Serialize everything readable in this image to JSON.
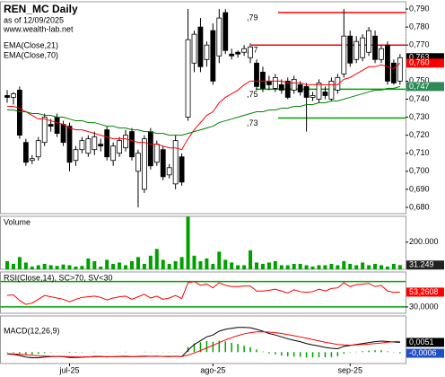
{
  "chart_data": [
    {
      "type": "candlestick",
      "title": "REN_MC Daily",
      "subtitle": "as of 12/09/2025",
      "source": "www.wealth-lab.net",
      "categories": [
        null,
        null,
        null,
        null,
        null,
        null,
        null,
        null,
        null,
        null,
        "jul-25",
        null,
        null,
        null,
        null,
        null,
        null,
        null,
        null,
        null,
        null,
        null,
        null,
        null,
        null,
        null,
        null,
        null,
        null,
        null,
        null,
        null,
        null,
        "ago-25",
        null,
        null,
        null,
        null,
        null,
        null,
        null,
        null,
        null,
        null,
        null,
        null,
        null,
        null,
        null,
        null,
        null,
        null,
        null,
        null,
        null,
        "sep-25",
        null,
        null,
        null,
        null,
        null,
        null,
        null,
        null
      ],
      "open": [
        0.742,
        0.741,
        0.745,
        0.716,
        0.706,
        0.708,
        0.716,
        0.726,
        0.73,
        0.726,
        0.725,
        0.706,
        0.712,
        0.71,
        0.712,
        0.715,
        0.723,
        0.706,
        0.71,
        0.713,
        0.722,
        0.7,
        0.69,
        0.722,
        0.705,
        0.712,
        0.698,
        0.693,
        0.708,
        0.73,
        0.76,
        0.78,
        0.762,
        0.778,
        0.764,
        0.788,
        0.765,
        0.766,
        0.766,
        0.763,
        0.76,
        0.755,
        0.75,
        0.746,
        0.748,
        0.75,
        0.745,
        0.748,
        0.747,
        0.741,
        0.74,
        0.744,
        0.74,
        0.745,
        0.754,
        0.775,
        0.762,
        0.763,
        0.766,
        0.775,
        0.762,
        0.77,
        0.76,
        0.75
      ],
      "high": [
        0.745,
        0.744,
        0.747,
        0.718,
        0.709,
        0.719,
        0.732,
        0.729,
        0.732,
        0.728,
        0.727,
        0.714,
        0.719,
        0.72,
        0.722,
        0.718,
        0.725,
        0.716,
        0.719,
        0.723,
        0.724,
        0.712,
        0.72,
        0.724,
        0.717,
        0.714,
        0.704,
        0.72,
        0.71,
        0.79,
        0.778,
        0.785,
        0.772,
        0.782,
        0.79,
        0.79,
        0.768,
        0.767,
        0.77,
        0.771,
        0.762,
        0.758,
        0.753,
        0.754,
        0.751,
        0.752,
        0.753,
        0.75,
        0.749,
        0.744,
        0.751,
        0.747,
        0.752,
        0.754,
        0.79,
        0.778,
        0.775,
        0.776,
        0.78,
        0.778,
        0.77,
        0.772,
        0.762,
        0.765
      ],
      "low": [
        0.738,
        0.737,
        0.718,
        0.703,
        0.704,
        0.706,
        0.714,
        0.722,
        0.719,
        0.714,
        0.7,
        0.703,
        0.71,
        0.708,
        0.709,
        0.711,
        0.706,
        0.703,
        0.708,
        0.711,
        0.706,
        0.68,
        0.688,
        0.701,
        0.703,
        0.695,
        0.696,
        0.69,
        0.692,
        0.728,
        0.755,
        0.755,
        0.758,
        0.748,
        0.76,
        0.765,
        0.762,
        0.763,
        0.764,
        0.76,
        0.745,
        0.744,
        0.745,
        0.744,
        0.743,
        0.74,
        0.743,
        0.742,
        0.722,
        0.739,
        0.738,
        0.74,
        0.739,
        0.743,
        0.752,
        0.758,
        0.76,
        0.761,
        0.764,
        0.76,
        0.76,
        0.748,
        0.748,
        0.748
      ],
      "close": [
        0.741,
        0.743,
        0.72,
        0.705,
        0.707,
        0.717,
        0.73,
        0.725,
        0.721,
        0.716,
        0.705,
        0.712,
        0.717,
        0.718,
        0.719,
        0.714,
        0.708,
        0.714,
        0.717,
        0.72,
        0.708,
        0.71,
        0.718,
        0.703,
        0.715,
        0.697,
        0.702,
        0.717,
        0.694,
        0.773,
        0.776,
        0.758,
        0.77,
        0.75,
        0.785,
        0.767,
        0.764,
        0.765,
        0.768,
        0.769,
        0.747,
        0.746,
        0.748,
        0.752,
        0.745,
        0.741,
        0.751,
        0.744,
        0.741,
        0.742,
        0.749,
        0.742,
        0.75,
        0.752,
        0.775,
        0.76,
        0.772,
        0.774,
        0.778,
        0.762,
        0.768,
        0.75,
        0.749,
        0.763
      ],
      "series": [
        {
          "name": "EMA(Close,21)",
          "color": "#ff0000",
          "values": [
            0.736,
            0.736,
            0.735,
            0.733,
            0.731,
            0.729,
            0.729,
            0.728,
            0.727,
            0.726,
            0.724,
            0.723,
            0.723,
            0.722,
            0.721,
            0.72,
            0.719,
            0.718,
            0.718,
            0.718,
            0.717,
            0.716,
            0.716,
            0.715,
            0.715,
            0.714,
            0.713,
            0.713,
            0.712,
            0.718,
            0.723,
            0.727,
            0.731,
            0.733,
            0.738,
            0.741,
            0.743,
            0.745,
            0.748,
            0.75,
            0.75,
            0.75,
            0.75,
            0.75,
            0.75,
            0.749,
            0.749,
            0.749,
            0.748,
            0.748,
            0.748,
            0.748,
            0.748,
            0.748,
            0.751,
            0.752,
            0.754,
            0.756,
            0.758,
            0.758,
            0.759,
            0.758,
            0.757,
            0.76
          ]
        },
        {
          "name": "EMA(Close,70)",
          "color": "#008000",
          "values": [
            0.734,
            0.734,
            0.733,
            0.733,
            0.732,
            0.732,
            0.731,
            0.731,
            0.73,
            0.73,
            0.729,
            0.728,
            0.728,
            0.727,
            0.727,
            0.726,
            0.725,
            0.725,
            0.724,
            0.724,
            0.723,
            0.723,
            0.722,
            0.722,
            0.721,
            0.721,
            0.72,
            0.72,
            0.72,
            0.721,
            0.722,
            0.723,
            0.724,
            0.725,
            0.727,
            0.728,
            0.729,
            0.73,
            0.731,
            0.732,
            0.733,
            0.733,
            0.734,
            0.734,
            0.735,
            0.735,
            0.736,
            0.736,
            0.737,
            0.737,
            0.738,
            0.738,
            0.739,
            0.739,
            0.74,
            0.741,
            0.742,
            0.743,
            0.744,
            0.745,
            0.745,
            0.746,
            0.746,
            0.747
          ]
        }
      ],
      "ylim": [
        0.6765,
        0.794
      ],
      "yticks": [
        {
          "value": 0.79,
          "label": "0,790"
        },
        {
          "value": 0.78,
          "label": "0,780"
        },
        {
          "value": 0.77,
          "label": "0,770"
        },
        {
          "value": 0.75,
          "label": "0,750"
        },
        {
          "value": 0.74,
          "label": "0,740"
        },
        {
          "value": 0.73,
          "label": "0,730"
        },
        {
          "value": 0.72,
          "label": "0,720"
        },
        {
          "value": 0.71,
          "label": "0,710"
        },
        {
          "value": 0.7,
          "label": "0,700"
        },
        {
          "value": 0.69,
          "label": "0,690"
        },
        {
          "value": 0.68,
          "label": "0,680"
        }
      ],
      "levels": [
        {
          "label": ",79",
          "value": 0.788,
          "color": "#ff0000"
        },
        {
          "label": ",77",
          "value": 0.77,
          "color": "#ff0000"
        },
        {
          "label": ",75",
          "value": 0.7455,
          "color": "#00a000"
        },
        {
          "label": ",73",
          "value": 0.7295,
          "color": "#00a000"
        }
      ],
      "last_labels": [
        {
          "value": 0.763,
          "label": "0,763",
          "color": "#000000"
        },
        {
          "value": 0.76,
          "label": "0,760",
          "color": "#ff0000"
        },
        {
          "value": 0.747,
          "label": "0,747",
          "color": "#2e8b57"
        }
      ]
    },
    {
      "type": "bar",
      "title": "Volume",
      "color": "#00a000",
      "values": [
        60000,
        40000,
        90000,
        50000,
        20000,
        30000,
        40000,
        30000,
        25000,
        35000,
        30000,
        20000,
        25000,
        80000,
        60000,
        20000,
        70000,
        40000,
        50000,
        30000,
        60000,
        90000,
        40000,
        100000,
        150000,
        70000,
        40000,
        60000,
        90000,
        387000,
        100000,
        60000,
        80000,
        40000,
        130000,
        70000,
        50000,
        30000,
        30000,
        140000,
        50000,
        40000,
        50000,
        60000,
        30000,
        30000,
        40000,
        40000,
        30000,
        20000,
        30000,
        30000,
        40000,
        30000,
        60000,
        40000,
        30000,
        50000,
        30000,
        40000,
        30000,
        20000,
        40000,
        31249
      ],
      "ylim": [
        0,
        390000
      ],
      "yticks": [
        {
          "value": 200000,
          "label": "200.000"
        }
      ],
      "last_labels": [
        {
          "value": 31249,
          "label": "31.249",
          "color": "#222222"
        }
      ]
    },
    {
      "type": "line",
      "title": "RSI(Close,14), SC>70, SV<30",
      "series": [
        {
          "color": "#ff0000",
          "values": [
            48,
            49,
            40,
            34,
            36,
            42,
            48,
            46,
            44,
            42,
            38,
            42,
            45,
            46,
            47,
            45,
            41,
            44,
            46,
            47,
            42,
            46,
            50,
            44,
            47,
            42,
            44,
            48,
            43,
            68,
            70,
            64,
            66,
            60,
            68,
            64,
            62,
            62,
            63,
            63,
            55,
            55,
            56,
            58,
            55,
            52,
            57,
            54,
            53,
            54,
            58,
            55,
            59,
            60,
            68,
            62,
            65,
            66,
            67,
            62,
            64,
            55,
            53,
            53.2608
          ]
        }
      ],
      "ylim": [
        20,
        85
      ],
      "yticks": [
        {
          "value": 30,
          "label": "30,0000"
        }
      ],
      "levels": [
        {
          "value": 70,
          "color": "#00a000"
        },
        {
          "value": 30,
          "color": "#00a000"
        }
      ],
      "last_labels": [
        {
          "value": 53.2608,
          "label": "53,2608",
          "color": "#ff0000"
        }
      ]
    },
    {
      "type": "macd",
      "title": "MACD(12,26,9)",
      "series": [
        {
          "color": "#000000",
          "values": [
            -0.001,
            -0.0012,
            -0.0018,
            -0.0026,
            -0.003,
            -0.003,
            -0.0026,
            -0.0024,
            -0.0023,
            -0.0024,
            -0.0028,
            -0.0028,
            -0.0027,
            -0.0025,
            -0.0023,
            -0.0023,
            -0.0025,
            -0.0024,
            -0.0023,
            -0.0022,
            -0.0024,
            -0.0023,
            -0.0021,
            -0.0022,
            -0.0021,
            -0.0023,
            -0.0024,
            -0.0022,
            -0.0024,
            0.001,
            0.004,
            0.006,
            0.008,
            0.009,
            0.011,
            0.012,
            0.0125,
            0.013,
            0.013,
            0.0128,
            0.012,
            0.011,
            0.0098,
            0.009,
            0.008,
            0.007,
            0.0062,
            0.0055,
            0.0045,
            0.0038,
            0.0032,
            0.0025,
            0.002,
            0.0018,
            0.003,
            0.0035,
            0.004,
            0.0045,
            0.005,
            0.0055,
            0.0058,
            0.0056,
            0.0053,
            0.0051
          ]
        },
        {
          "color": "#ff0000",
          "values": [
            -0.0008,
            -0.0009,
            -0.0011,
            -0.0014,
            -0.0017,
            -0.002,
            -0.0021,
            -0.0022,
            -0.0022,
            -0.0023,
            -0.0024,
            -0.0025,
            -0.0025,
            -0.0025,
            -0.0025,
            -0.0024,
            -0.0024,
            -0.0024,
            -0.0024,
            -0.0024,
            -0.0024,
            -0.0024,
            -0.0023,
            -0.0023,
            -0.0022,
            -0.0022,
            -0.0023,
            -0.0023,
            -0.0023,
            -0.0016,
            -0.0005,
            0.0008,
            0.0022,
            0.0036,
            0.005,
            0.0064,
            0.0076,
            0.0087,
            0.0096,
            0.0102,
            0.0106,
            0.0107,
            0.0105,
            0.0102,
            0.0098,
            0.0092,
            0.0086,
            0.008,
            0.0073,
            0.0066,
            0.0059,
            0.0052,
            0.0046,
            0.004,
            0.0038,
            0.0037,
            0.0038,
            0.004,
            0.0042,
            0.0045,
            0.0048,
            0.0052,
            0.0055,
            0.0057
          ]
        }
      ],
      "histogram": {
        "color": "#00a000",
        "values": [
          -0.0002,
          -0.0003,
          -0.0007,
          -0.0012,
          -0.0013,
          -0.001,
          -0.0005,
          -0.0002,
          -0.0001,
          -0.0001,
          -0.0004,
          -0.0003,
          -0.0002,
          0,
          0.0002,
          0.0001,
          -0.0001,
          0,
          0.0001,
          0.0002,
          0,
          0.0001,
          0.0002,
          0.0001,
          0.0001,
          -0.0001,
          -0.0001,
          0.0001,
          -0.0001,
          0.0026,
          0.0045,
          0.0052,
          0.0058,
          0.0054,
          0.006,
          0.0056,
          0.0049,
          0.0043,
          0.0034,
          0.0026,
          0.0014,
          0.0003,
          -0.0007,
          -0.0012,
          -0.0018,
          -0.0022,
          -0.0024,
          -0.0025,
          -0.0028,
          -0.0028,
          -0.0027,
          -0.0027,
          -0.0026,
          -0.0022,
          -0.0008,
          -0.0002,
          0.0002,
          0.0005,
          0.0008,
          0.001,
          0.001,
          0.0004,
          -0.0002,
          -0.0006
        ]
      },
      "ylim": [
        -0.006,
        0.019
      ],
      "last_labels": [
        {
          "value": 0.0051,
          "label": "0,0051",
          "color": "#000000"
        },
        {
          "value": -0.0006,
          "label": "-0,0006",
          "color": "#1e50c8"
        }
      ]
    }
  ]
}
